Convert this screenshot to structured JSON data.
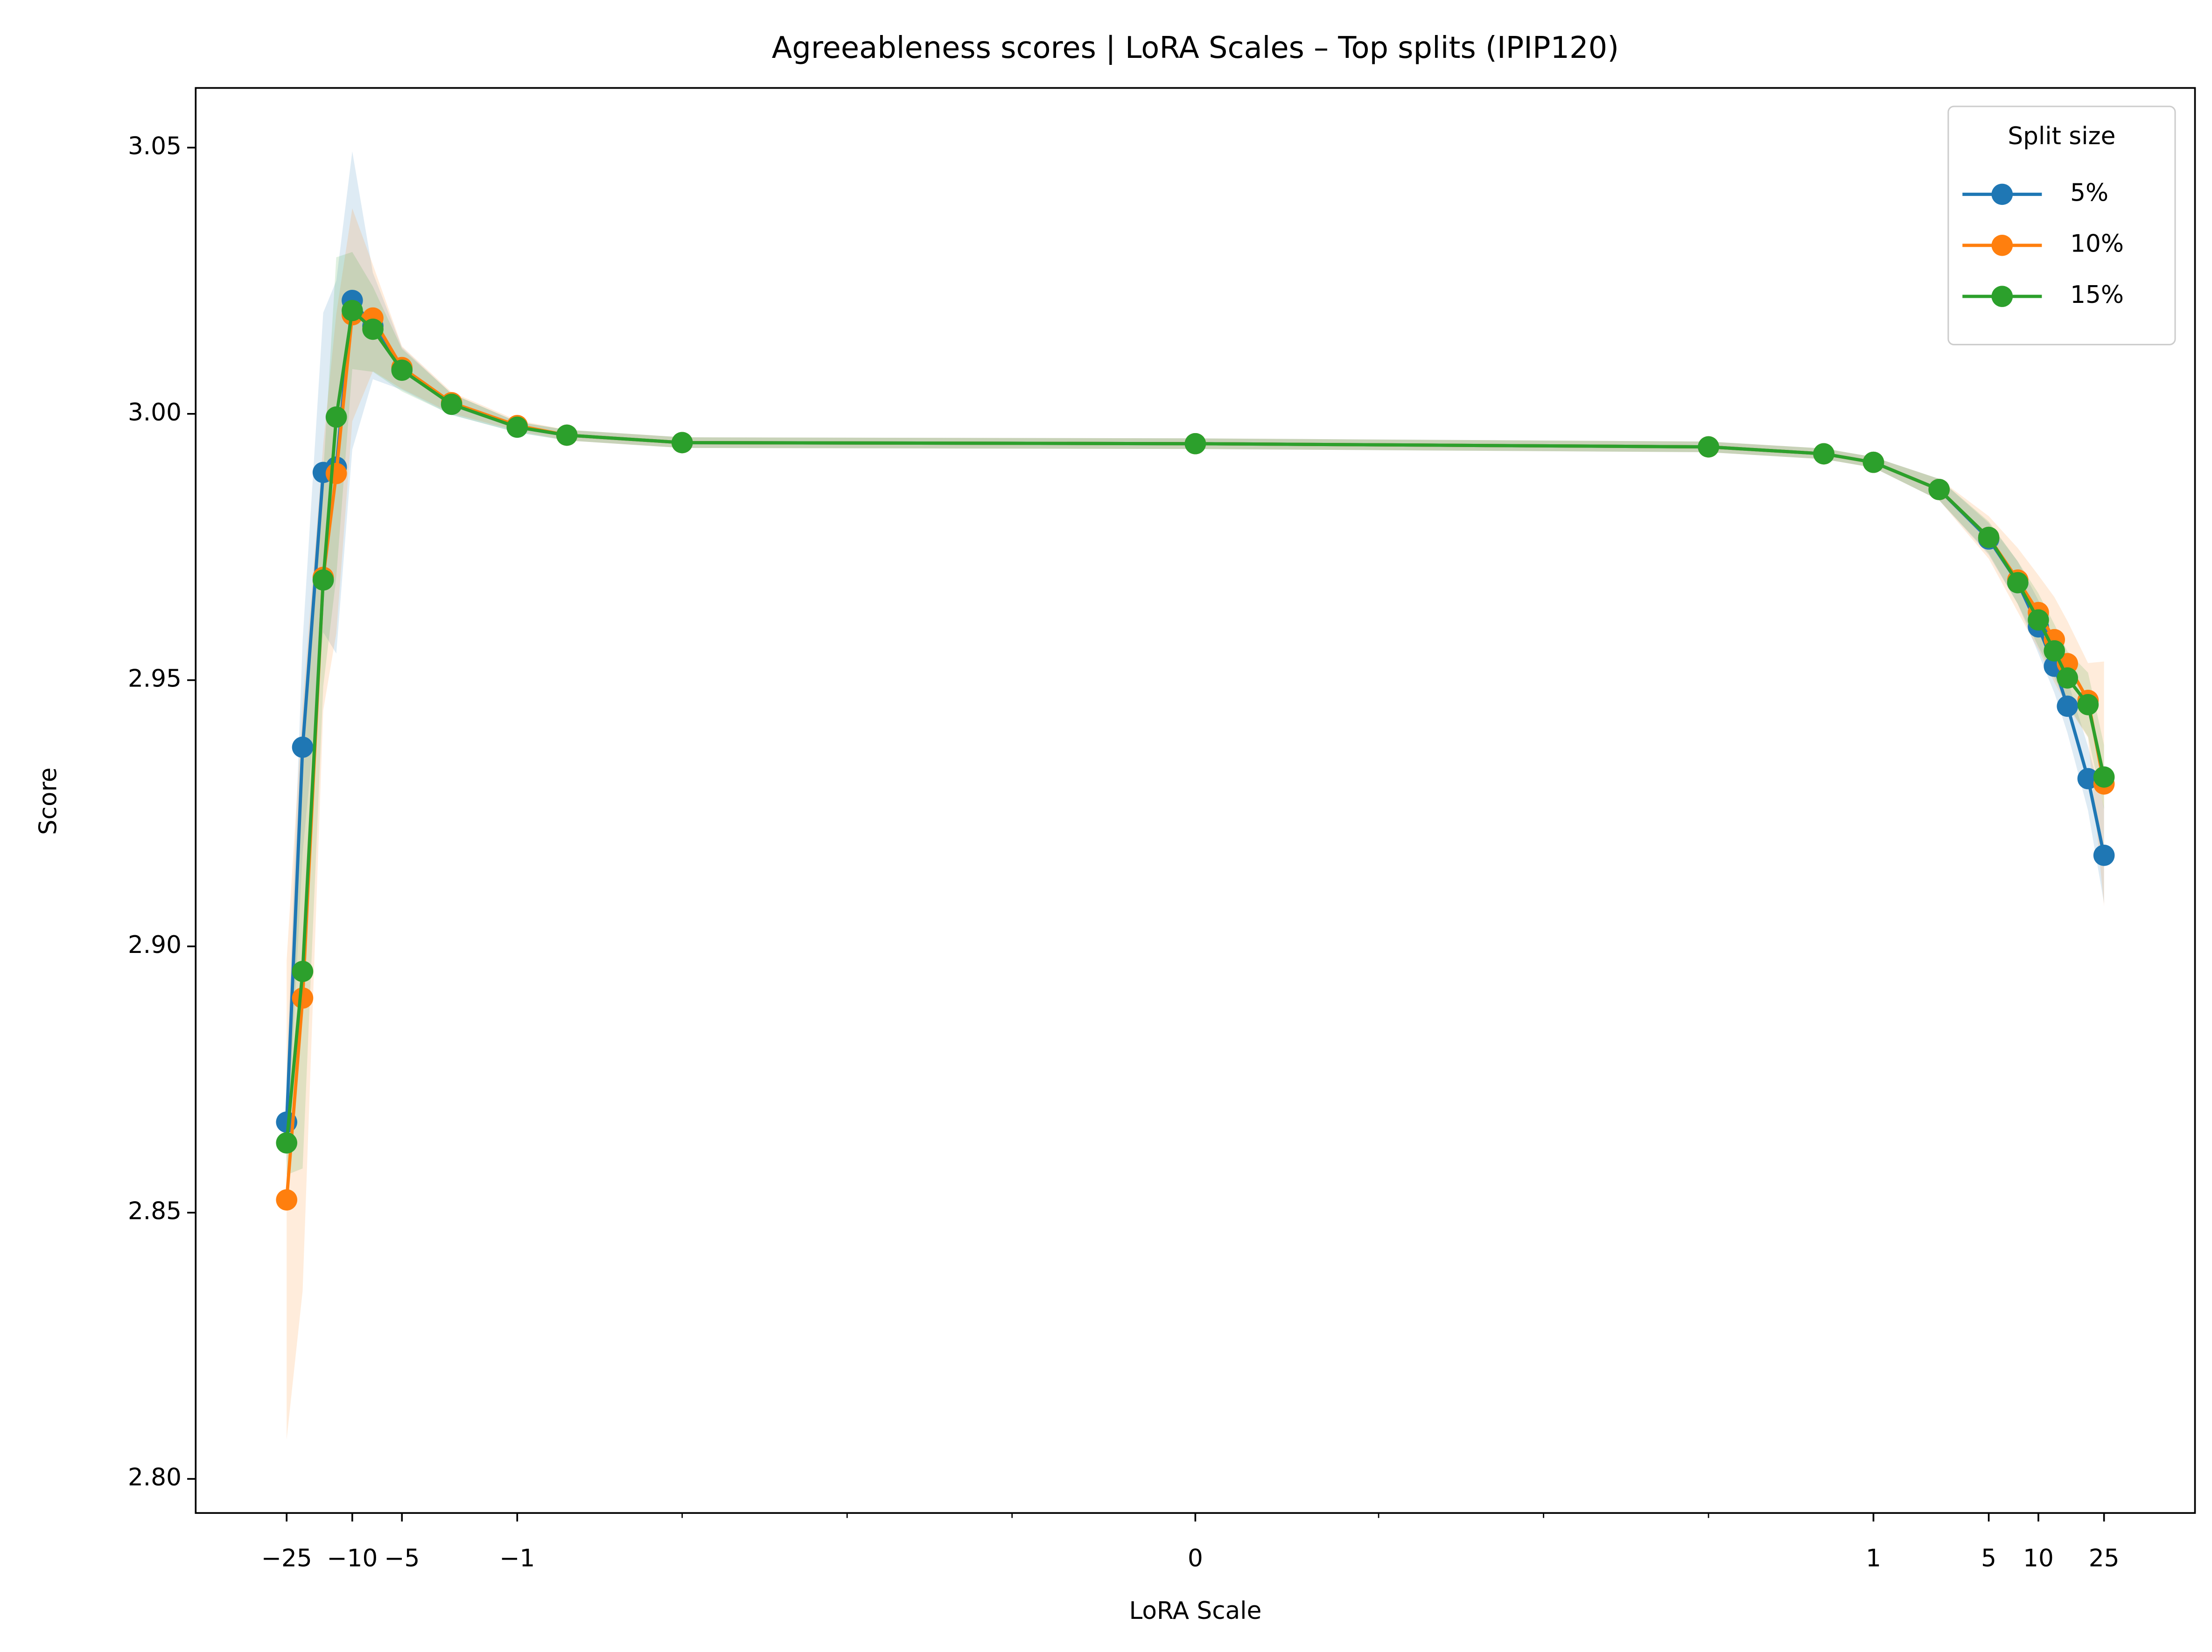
{
  "chart_data": {
    "type": "line",
    "title": "Agreeableness scores | LoRA Scales – Top splits (IPIP120)",
    "xlabel": "LoRA Scale",
    "ylabel": "Score",
    "xscale": "symlog",
    "linthresh": 0.001,
    "linscale": 1,
    "x": [
      -25,
      -20,
      -15,
      -12.5,
      -10,
      -7.5,
      -5,
      -2.5,
      -1,
      -0.5,
      -0.1,
      0,
      0.1,
      0.5,
      1,
      2.5,
      5,
      7.5,
      10,
      12.5,
      15,
      20,
      25
    ],
    "xlim": [
      -89,
      89
    ],
    "xticks": [
      {
        "value": -25,
        "label": "−25"
      },
      {
        "value": -10,
        "label": "−10"
      },
      {
        "value": -5,
        "label": "−5"
      },
      {
        "value": -1,
        "label": "−1"
      },
      0,
      1,
      5,
      10,
      25
    ],
    "xminorticks": [
      -0.1,
      -0.01,
      -0.001,
      0.001,
      0.01,
      0.1
    ],
    "ylim": [
      2.7936,
      3.0612
    ],
    "yticks": [
      {
        "value": 2.8,
        "label": "2.80"
      },
      2.85,
      {
        "value": 2.9,
        "label": "2.90"
      },
      2.95,
      {
        "value": 3.0,
        "label": "3.00"
      },
      3.05
    ],
    "legend": {
      "title": "Split size",
      "position": "upper right"
    },
    "series": [
      {
        "name": "5%",
        "color": "#1f77b4",
        "values": [
          2.867,
          2.9374,
          2.989,
          2.99,
          3.0213,
          3.0165,
          3.0085,
          3.0018,
          2.9975,
          2.996,
          2.9946,
          2.9944,
          2.9938,
          2.9925,
          2.9909,
          2.9858,
          2.9765,
          2.9683,
          2.96,
          2.9526,
          2.9451,
          2.9315,
          2.9171
        ],
        "error": [
          0.008,
          0.02,
          0.03,
          0.035,
          0.028,
          0.01,
          0.004,
          0.002,
          0.001,
          0.001,
          0.001,
          0.001,
          0.001,
          0.001,
          0.001,
          0.002,
          0.003,
          0.004,
          0.005,
          0.005,
          0.005,
          0.006,
          0.009
        ]
      },
      {
        "name": "10%",
        "color": "#ff7f0e",
        "values": [
          2.8524,
          2.8903,
          2.9693,
          2.9888,
          3.0186,
          3.018,
          3.0087,
          3.0021,
          2.9978,
          2.996,
          2.9946,
          2.9944,
          2.9938,
          2.9925,
          2.9909,
          2.9858,
          2.9768,
          2.9688,
          2.9627,
          2.9576,
          2.9531,
          2.9462,
          2.9305
        ],
        "error": [
          0.045,
          0.055,
          0.025,
          0.03,
          0.02,
          0.01,
          0.004,
          0.002,
          0.001,
          0.001,
          0.001,
          0.001,
          0.001,
          0.001,
          0.001,
          0.002,
          0.004,
          0.006,
          0.007,
          0.008,
          0.008,
          0.007,
          0.023
        ]
      },
      {
        "name": "15%",
        "color": "#2ca02c",
        "values": [
          2.8631,
          2.8953,
          2.9688,
          2.9994,
          3.0194,
          3.0159,
          3.0082,
          3.0018,
          2.9975,
          2.996,
          2.9946,
          2.9944,
          2.9938,
          2.9925,
          2.9909,
          2.9858,
          2.9768,
          2.9683,
          2.9613,
          2.9555,
          2.9504,
          2.9454,
          2.9318
        ],
        "error": [
          0.006,
          0.037,
          0.02,
          0.03,
          0.011,
          0.008,
          0.004,
          0.002,
          0.001,
          0.001,
          0.001,
          0.001,
          0.001,
          0.001,
          0.001,
          0.002,
          0.003,
          0.004,
          0.005,
          0.005,
          0.005,
          0.006,
          0.006
        ]
      }
    ]
  }
}
